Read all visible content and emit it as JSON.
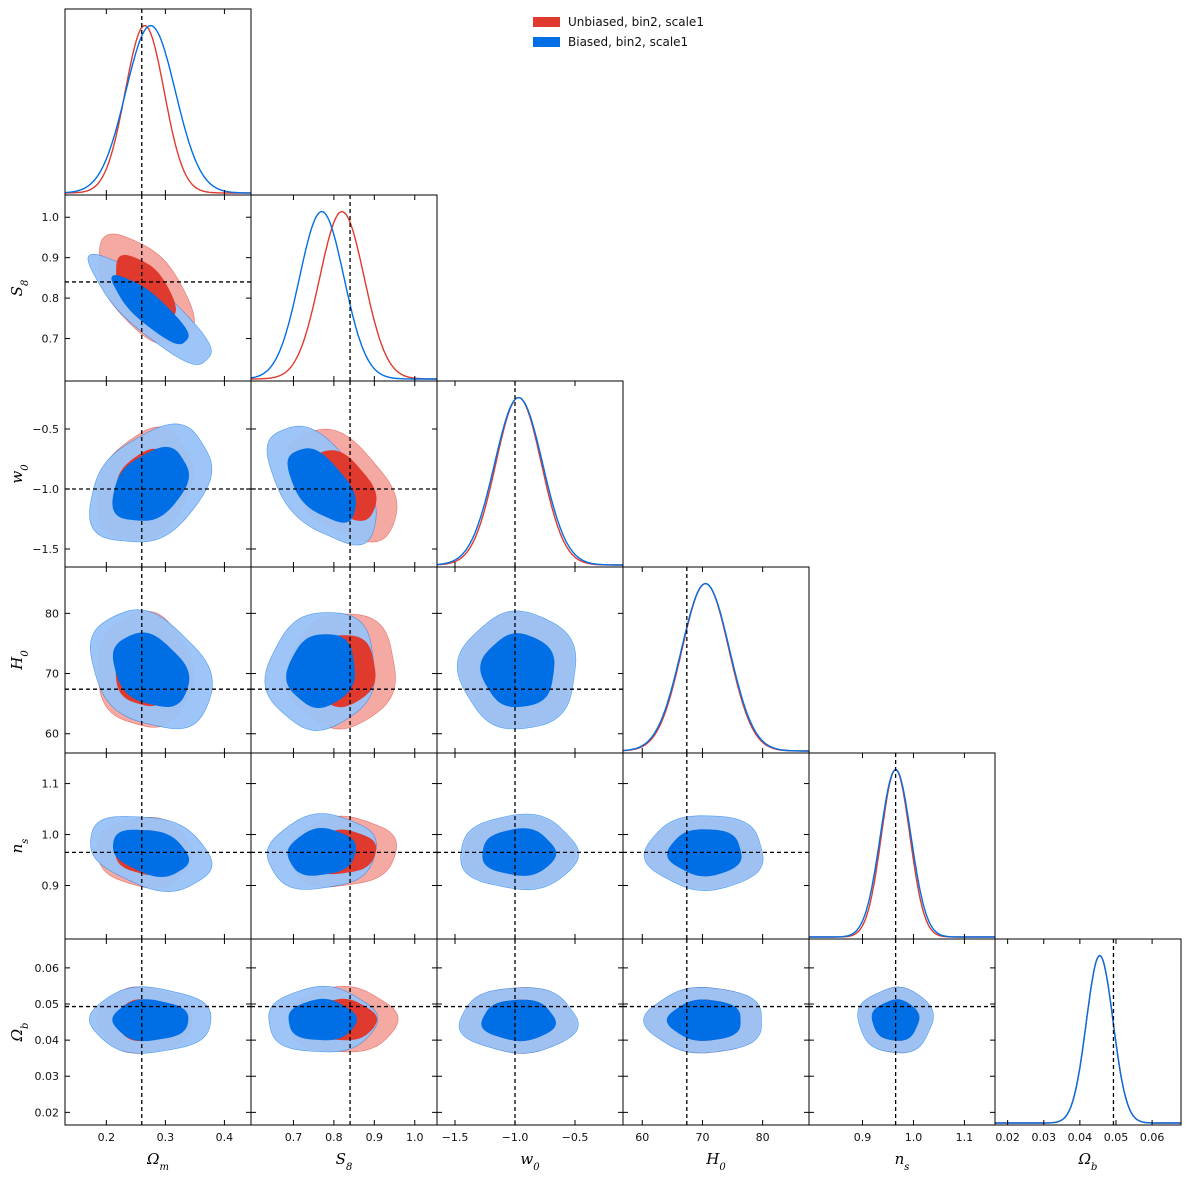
{
  "chart_data": {
    "type": "corner",
    "colors": {
      "unbiased": "#e03a2e",
      "unbiased_light": "#f4aaa3",
      "biased": "#006fe6",
      "biased_light": "#99c2f7"
    },
    "legend": [
      {
        "label": "Unbiased, bin2, scale1",
        "color": "#e03a2e"
      },
      {
        "label": "Biased, bin2, scale1",
        "color": "#006fe6"
      }
    ],
    "params": [
      {
        "name": "Omega_m",
        "label": "Ω",
        "sub": "m",
        "range": [
          0.13,
          0.445
        ],
        "ticks": [
          0.2,
          0.3,
          0.4
        ],
        "tick_labels": [
          "0.2",
          "0.3",
          "0.4"
        ],
        "truth": 0.26
      },
      {
        "name": "S8",
        "label": "S",
        "sub": "8",
        "range": [
          0.595,
          1.055
        ],
        "ticks": [
          0.7,
          0.8,
          0.9,
          1.0
        ],
        "tick_labels": [
          "0.7",
          "0.8",
          "0.9",
          "1.0"
        ],
        "truth": 0.84
      },
      {
        "name": "w0",
        "label": "w",
        "sub": "0",
        "range": [
          -1.65,
          -0.1
        ],
        "ticks": [
          -1.5,
          -1.0,
          -0.5
        ],
        "tick_labels": [
          "−1.5",
          "−1.0",
          "−0.5"
        ],
        "truth": -1.0
      },
      {
        "name": "H0",
        "label": "H",
        "sub": "0",
        "range": [
          56.8,
          87.7
        ],
        "ticks": [
          60,
          70,
          80
        ],
        "tick_labels": [
          "60",
          "70",
          "80"
        ],
        "truth": 67.4
      },
      {
        "name": "ns",
        "label": "n",
        "sub": "s",
        "range": [
          0.795,
          1.16
        ],
        "ticks": [
          0.9,
          1.0,
          1.1
        ],
        "tick_labels": [
          "0.9",
          "1.0",
          "1.1"
        ],
        "truth": 0.965
      },
      {
        "name": "Omega_b",
        "label": "Ω",
        "sub": "b",
        "range": [
          0.0165,
          0.068
        ],
        "ticks": [
          0.02,
          0.03,
          0.04,
          0.05,
          0.06
        ],
        "tick_labels": [
          "0.02",
          "0.03",
          "0.04",
          "0.05",
          "0.06"
        ],
        "truth": 0.0493
      }
    ],
    "series": [
      {
        "name": "Unbiased, bin2, scale1",
        "mean": [
          0.265,
          0.82,
          -0.97,
          70.5,
          0.965,
          0.0455
        ],
        "sigma": [
          0.033,
          0.055,
          0.19,
          3.9,
          0.028,
          0.0037
        ],
        "corr": [
          [
            1,
            -0.55,
            0.25,
            -0.05,
            -0.05,
            0.0
          ],
          [
            -0.55,
            1,
            -0.45,
            0.05,
            0.1,
            0.0
          ],
          [
            0.25,
            -0.45,
            1,
            0.0,
            0.0,
            0.0
          ],
          [
            -0.05,
            0.05,
            0.0,
            1,
            0.0,
            0.0
          ],
          [
            -0.05,
            0.1,
            0.0,
            0.0,
            1,
            0.0
          ],
          [
            0.0,
            0.0,
            0.0,
            0.0,
            0.0,
            1
          ]
        ]
      },
      {
        "name": "Biased, bin2, scale1",
        "mean": [
          0.275,
          0.77,
          -0.97,
          70.5,
          0.965,
          0.0455
        ],
        "sigma": [
          0.042,
          0.055,
          0.2,
          4.0,
          0.03,
          0.0037
        ],
        "corr": [
          [
            1,
            -0.85,
            0.35,
            -0.3,
            -0.3,
            0.0
          ],
          [
            -0.85,
            1,
            -0.55,
            0.1,
            0.1,
            0.0
          ],
          [
            0.35,
            -0.55,
            1,
            0.0,
            0.0,
            0.0
          ],
          [
            -0.3,
            0.1,
            0.0,
            1,
            0.0,
            0.0
          ],
          [
            -0.3,
            0.1,
            0.0,
            0.0,
            1,
            0.0
          ],
          [
            0.0,
            0.0,
            0.0,
            0.0,
            0.0,
            1
          ]
        ]
      }
    ]
  }
}
